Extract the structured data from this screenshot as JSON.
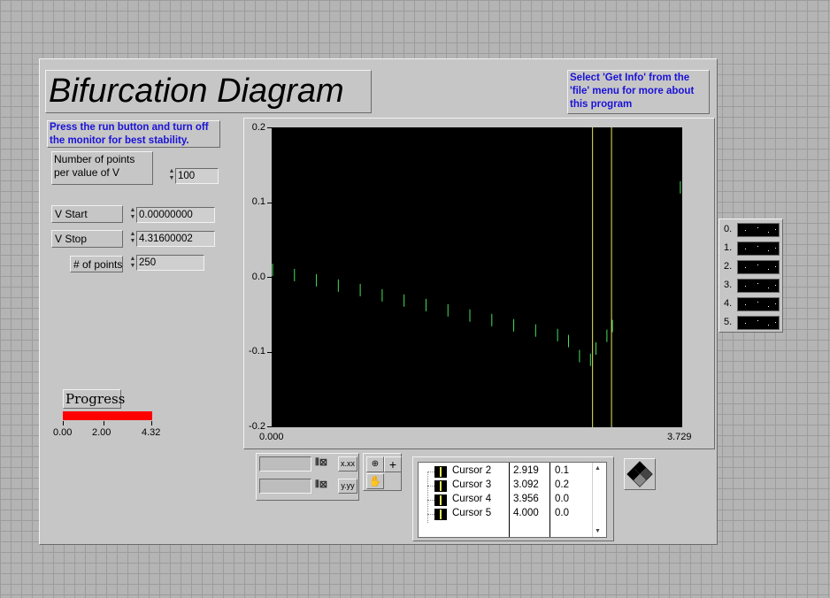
{
  "title": "Bifurcation Diagram",
  "info_note": "Select 'Get Info' from the 'file' menu for more about this program",
  "run_note": "Press the run button and turn off the monitor for best stability.",
  "controls": {
    "points_per_v": {
      "label": "Number of points per value of V",
      "value": "100"
    },
    "v_start": {
      "label": "V Start",
      "value": "0.00000000"
    },
    "v_stop": {
      "label": "V Stop",
      "value": "4.31600002"
    },
    "num_points": {
      "label": "# of points",
      "value": "250"
    }
  },
  "progress": {
    "label": "Progress",
    "ticks": [
      "0.00",
      "2.00",
      "4.32"
    ],
    "fraction": 1.0,
    "color": "#ff0000"
  },
  "chart_data": {
    "type": "scatter",
    "title": "",
    "xlabel": "",
    "ylabel": "",
    "xlim": [
      0.0,
      3.729
    ],
    "ylim": [
      -0.2,
      0.2
    ],
    "x_tick_labels": [
      "0.000",
      "3.729"
    ],
    "y_tick_labels": [
      "0.2",
      "0.1",
      "0.0",
      "-0.1",
      "-0.2"
    ],
    "background": "#000000",
    "series_color": "#46e05a",
    "cursor_color": "#e8e85a",
    "cursors_x": [
      2.919,
      3.092
    ],
    "series": [
      {
        "x": [
          0.0,
          0.2,
          0.4,
          0.6,
          0.8,
          1.0,
          1.2,
          1.4,
          1.6,
          1.8,
          2.0,
          2.2,
          2.4,
          2.6,
          2.7,
          2.8,
          2.9,
          2.95,
          3.05,
          3.1,
          3.72
        ],
        "y": [
          0.01,
          0.003,
          -0.004,
          -0.011,
          -0.017,
          -0.024,
          -0.031,
          -0.037,
          -0.044,
          -0.051,
          -0.057,
          -0.064,
          -0.071,
          -0.077,
          -0.085,
          -0.105,
          -0.11,
          -0.095,
          -0.078,
          -0.065,
          0.12
        ]
      }
    ]
  },
  "cursor_table": {
    "rows": [
      {
        "name": "Cursor 2",
        "x": "2.919",
        "y": "0.1"
      },
      {
        "name": "Cursor 3",
        "x": "3.092",
        "y": "0.2"
      },
      {
        "name": "Cursor 4",
        "x": "3.956",
        "y": "0.0"
      },
      {
        "name": "Cursor 5",
        "x": "4.000",
        "y": "0.0"
      }
    ]
  },
  "scale_format": {
    "x": "x.xx",
    "y": "y.yy"
  },
  "plot_legend": {
    "items": [
      "0.",
      "1.",
      "2.",
      "3.",
      "4.",
      "5."
    ]
  }
}
